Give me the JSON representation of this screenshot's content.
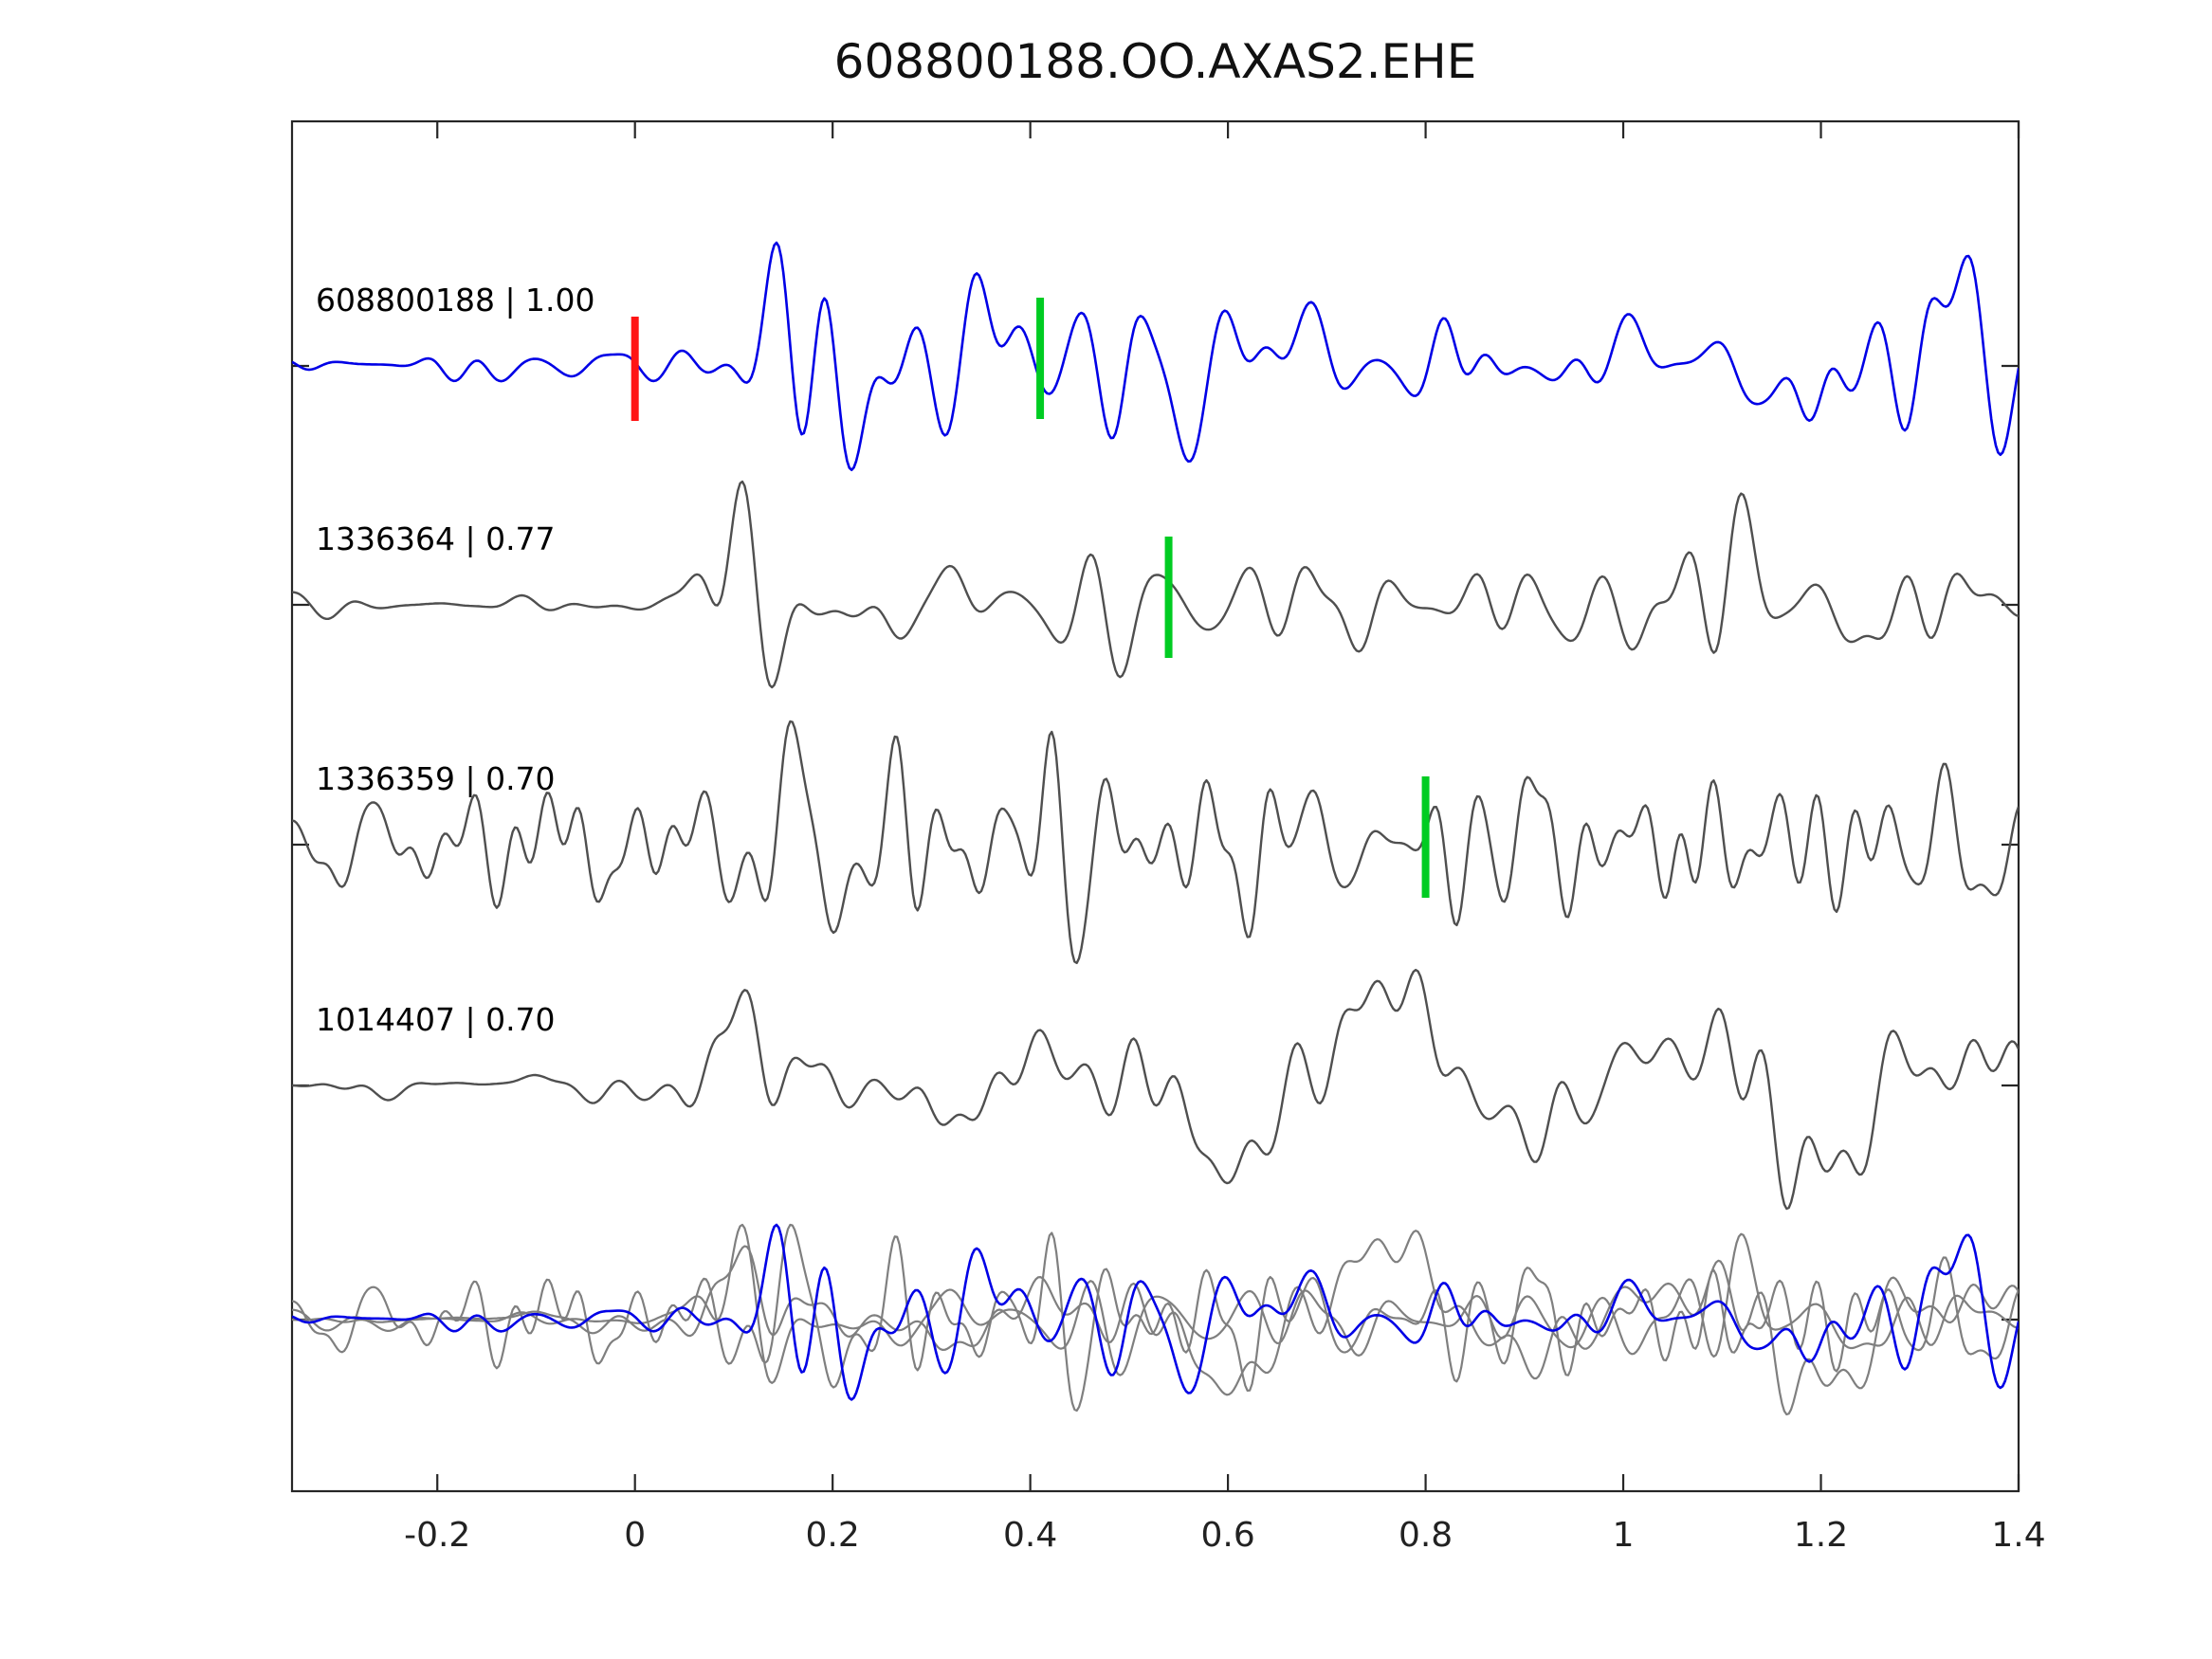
{
  "figure": {
    "title": "608800188.OO.AXAS2.EHE"
  },
  "chart_data": {
    "type": "line",
    "title": "608800188.OO.AXAS2.EHE",
    "subtitle": "",
    "xlabel": "",
    "ylabel": "",
    "grid": false,
    "legend": "none",
    "x_range": [
      -0.347,
      1.4
    ],
    "x_ticks": [
      -0.2,
      0,
      0.2,
      0.4,
      0.6,
      0.8,
      1,
      1.2,
      1.4
    ],
    "x_tick_labels": [
      "-0.2",
      "0",
      "0.2",
      "0.4",
      "0.6",
      "0.8",
      "1",
      "1.2",
      "1.4"
    ],
    "colors": {
      "template_trace": "#0000e6",
      "match_trace": "#4f4f4f",
      "overlay_gray": "#7f7f7f",
      "pick_red": "#ff1414",
      "pick_green": "#00cc22",
      "axis": "#262626",
      "tick_label": "#222222",
      "trace_label": "#000000"
    },
    "traces": [
      {
        "label": "608800188 | 1.00",
        "event_id": "608800188",
        "correlation": 1.0,
        "role": "template",
        "color_role": "template_trace",
        "markers": [
          {
            "x": 0.0,
            "color": "#ff1414",
            "kind": "template-origin-pick"
          },
          {
            "x": 0.41,
            "color": "#00cc22",
            "kind": "pick"
          }
        ],
        "waveform": {
          "seed": 11,
          "onset": 0.055,
          "pre_amp": 0.22,
          "freq_max": 26
        }
      },
      {
        "label": "1336364 | 0.77",
        "event_id": "1336364",
        "correlation": 0.77,
        "role": "match",
        "color_role": "match_trace",
        "markers": [
          {
            "x": 0.54,
            "color": "#00cc22",
            "kind": "pick"
          }
        ],
        "waveform": {
          "seed": 23,
          "onset": 0.065,
          "pre_amp": 0.1,
          "freq_max": 24
        }
      },
      {
        "label": "1336359 | 0.70",
        "event_id": "1336359",
        "correlation": 0.7,
        "role": "match",
        "color_role": "match_trace",
        "markers": [
          {
            "x": 0.8,
            "color": "#00cc22",
            "kind": "pick"
          }
        ],
        "waveform": {
          "seed": 37,
          "onset": 0.05,
          "pre_amp": 0.85,
          "freq_max": 34
        }
      },
      {
        "label": "1014407 | 0.70",
        "event_id": "1014407",
        "correlation": 0.7,
        "role": "match",
        "color_role": "match_trace",
        "markers": [],
        "waveform": {
          "seed": 45,
          "onset": 0.06,
          "pre_amp": 0.12,
          "freq_max": 24
        }
      }
    ],
    "overlay_row": {
      "description": "all matched traces (gray) overlaid with template trace (blue)",
      "gray_trace_indices": [
        1,
        2,
        3
      ],
      "blue_trace_index": 0
    }
  }
}
